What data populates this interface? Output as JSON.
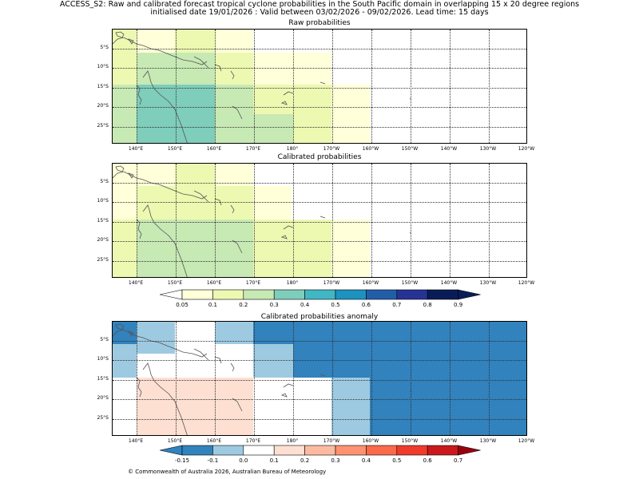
{
  "header": {
    "line1": "ACCESS_S2: Raw and calibrated forecast tropical cyclone probabilities in the South Pacific domain in overlapping 15 x 20 degree regions",
    "line2": "initialised date 19/01/2026 :  Valid between 03/02/2026 - 09/02/2026. Lead time: 15 days"
  },
  "lon_labels": [
    "140°E",
    "150°E",
    "160°E",
    "170°E",
    "180°",
    "170°W",
    "160°W",
    "150°W",
    "140°W",
    "130°W",
    "120°W"
  ],
  "lat_labels": [
    "5°S",
    "10°S",
    "15°S",
    "20°S",
    "25°S"
  ],
  "panels": [
    {
      "title": "Raw probabilities"
    },
    {
      "title": "Calibrated probabilities"
    },
    {
      "title": "Calibrated probabilities anomaly"
    }
  ],
  "colorbars": [
    {
      "labels": [
        "0.05",
        "0.1",
        "0.2",
        "0.3",
        "0.4",
        "0.5",
        "0.6",
        "0.7",
        "0.8",
        "0.9"
      ],
      "colors": [
        "#ffffd9",
        "#edf8b1",
        "#c7e9b4",
        "#7fcdbb",
        "#41b6c4",
        "#1d91c0",
        "#225ea8",
        "#253494",
        "#081d58",
        "#081d58"
      ]
    },
    {
      "labels": [
        "-0.15",
        "-0.1",
        "0.0",
        "0.1",
        "0.2",
        "0.3",
        "0.4",
        "0.5",
        "0.6",
        "0.7"
      ],
      "colors": [
        "#3182bd",
        "#9ecae1",
        "#ffffff",
        "#fee0d2",
        "#fcbba1",
        "#fc9272",
        "#fb6a4a",
        "#ef3b2c",
        "#cb181d",
        "#99000d"
      ]
    }
  ],
  "colors": {
    "p005": "#ffffd9",
    "p01": "#edf8b1",
    "p02": "#c7e9b4",
    "p03": "#7fcdbb",
    "neg015": "#3182bd",
    "neg01": "#9ecae1",
    "pos01": "#fee0d2"
  },
  "footer": "© Commonwealth of Australia 2026, Australian Bureau of Meteorology"
}
